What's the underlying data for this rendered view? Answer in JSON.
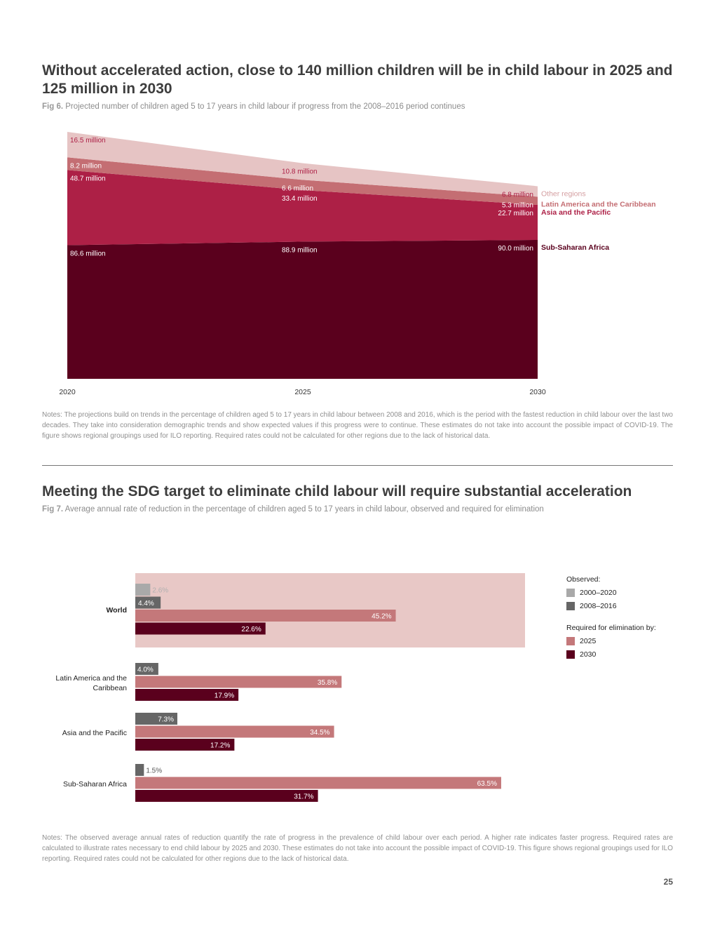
{
  "fig6": {
    "heading": "Without accelerated action, close to 140 million children will be in child labour in 2025 and 125 million in 2030",
    "fig_label": "Fig 6.",
    "caption": "Projected number of children aged 5 to 17 years in child labour if progress from the 2008–2016 period continues",
    "notes": "Notes: The projections build on trends in the percentage of children aged 5 to 17 years in child labour between 2008 and 2016, which is the period with the fastest reduction in child labour over the last two decades. They take into consideration demographic trends and show expected values if this progress were to continue. These estimates do not take into account the possible impact of COVID-19. The figure shows regional groupings used for ILO reporting. Required rates could not be calculated for other regions due to the lack of historical data."
  },
  "fig7": {
    "heading": "Meeting the SDG target to eliminate child labour will require substantial acceleration",
    "fig_label": "Fig 7.",
    "caption": "Average annual rate of reduction in the percentage of children aged 5 to 17 years in child labour, observed and required for elimination",
    "notes": "Notes: The observed average annual rates of reduction quantify the rate of progress in the prevalence of child labour over each period. A higher rate indicates faster progress. Required rates are calculated to illustrate rates necessary to end child labour by 2025 and 2030. These estimates do not take into account the possible impact of COVID-19. This figure shows regional groupings used for ILO reporting. Required rates could not be calculated for other regions due to the lack of historical data.",
    "legend": {
      "observed_title": "Observed:",
      "required_title": "Required for elimination by:",
      "items": [
        "2000–2020",
        "2008–2016",
        "2025",
        "2030"
      ]
    }
  },
  "page_number": "25",
  "colors": {
    "ssa": "#5a001d",
    "asia": "#ad2046",
    "latam": "#c46e73",
    "other": "#e6c4c4",
    "obs2000": "#a9a9a9",
    "obs2008": "#666666",
    "req2025": "#c4787a",
    "req2030": "#5a001d",
    "world_bg": "#e8c8c6"
  },
  "chart_data": [
    {
      "type": "area",
      "stacked": true,
      "x": [
        "2020",
        "2025",
        "2030"
      ],
      "series": [
        {
          "name": "Sub-Saharan Africa",
          "values": [
            86.6,
            88.9,
            90.0
          ],
          "labels": [
            "86.6 million",
            "88.9 million",
            "90.0 million"
          ]
        },
        {
          "name": "Asia and the Pacific",
          "values": [
            48.7,
            33.4,
            22.7
          ],
          "labels": [
            "48.7 million",
            "33.4 million",
            "22.7 million"
          ]
        },
        {
          "name": "Latin America and the Caribbean",
          "values": [
            8.2,
            6.6,
            5.3
          ],
          "labels": [
            "8.2 million",
            "6.6 million",
            "5.3 million"
          ]
        },
        {
          "name": "Other regions",
          "values": [
            16.5,
            10.8,
            6.8
          ],
          "labels": [
            "16.5 million",
            "10.8 million",
            "6.8 million"
          ]
        }
      ],
      "ylim": [
        0,
        160
      ]
    },
    {
      "type": "bar",
      "orientation": "horizontal",
      "xlim": [
        0,
        70
      ],
      "categories": [
        {
          "name": "World",
          "lines": [
            "World"
          ],
          "bold": true,
          "bars": [
            {
              "series": "2000–2020",
              "value": 2.6,
              "label": "2.6%"
            },
            {
              "series": "2008–2016",
              "value": 4.4,
              "label": "4.4%"
            },
            {
              "series": "2025",
              "value": 45.2,
              "label": "45.2%"
            },
            {
              "series": "2030",
              "value": 22.6,
              "label": "22.6%"
            }
          ]
        },
        {
          "name": "Latin America and the Caribbean",
          "lines": [
            "Latin America and the",
            "Caribbean"
          ],
          "bold": false,
          "bars": [
            {
              "series": "2008–2016",
              "value": 4.0,
              "label": "4.0%"
            },
            {
              "series": "2025",
              "value": 35.8,
              "label": "35.8%"
            },
            {
              "series": "2030",
              "value": 17.9,
              "label": "17.9%"
            }
          ]
        },
        {
          "name": "Asia and the Pacific",
          "lines": [
            "Asia and the Pacific"
          ],
          "bold": false,
          "bars": [
            {
              "series": "2008–2016",
              "value": 7.3,
              "label": "7.3%"
            },
            {
              "series": "2025",
              "value": 34.5,
              "label": "34.5%"
            },
            {
              "series": "2030",
              "value": 17.2,
              "label": "17.2%"
            }
          ]
        },
        {
          "name": "Sub-Saharan Africa",
          "lines": [
            "Sub-Saharan Africa"
          ],
          "bold": false,
          "bars": [
            {
              "series": "2008–2016",
              "value": 1.5,
              "label": "1.5%"
            },
            {
              "series": "2025",
              "value": 63.5,
              "label": "63.5%"
            },
            {
              "series": "2030",
              "value": 31.7,
              "label": "31.7%"
            }
          ]
        }
      ]
    }
  ]
}
